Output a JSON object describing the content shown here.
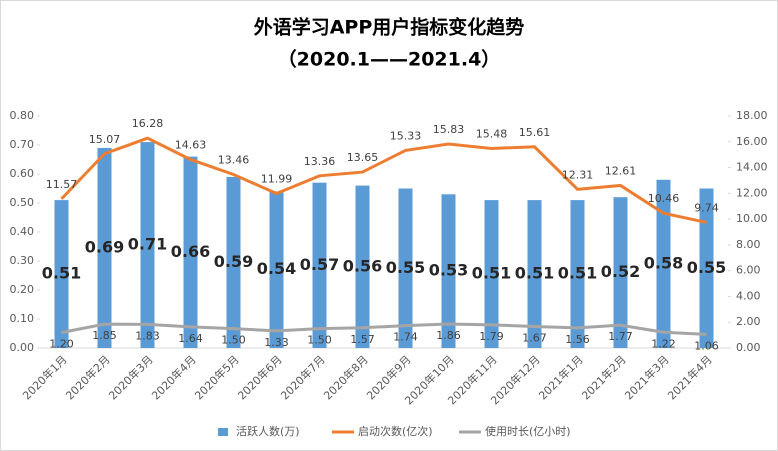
{
  "chart_data": {
    "type": "bar-line",
    "title": "外语学习APP用户指标变化趋势",
    "subtitle": "（2020.1——2021.4）",
    "categories": [
      "2020年1月",
      "2020年2月",
      "2020年3月",
      "2020年4月",
      "2020年5月",
      "2020年6月",
      "2020年7月",
      "2020年8月",
      "2020年9月",
      "2020年10月",
      "2020年11月",
      "2020年12月",
      "2021年1月",
      "2021年2月",
      "2021年3月",
      "2021年4月"
    ],
    "series": [
      {
        "name": "活跃人数(万)",
        "type": "bar",
        "color": "#5b9bd5",
        "values": [
          0.51,
          0.69,
          0.71,
          0.66,
          0.59,
          0.54,
          0.57,
          0.56,
          0.55,
          0.53,
          0.51,
          0.51,
          0.51,
          0.52,
          0.58,
          0.55
        ]
      },
      {
        "name": "启动次数(亿次)",
        "type": "line",
        "axis": "y2",
        "color": "#ed7d31",
        "values": [
          11.57,
          15.07,
          16.28,
          14.63,
          13.46,
          11.99,
          13.36,
          13.65,
          15.33,
          15.83,
          15.48,
          15.61,
          12.31,
          12.61,
          10.46,
          9.74
        ]
      },
      {
        "name": "使用时长(亿小时)",
        "type": "line",
        "axis": "y2",
        "color": "#a5a5a5",
        "values": [
          1.2,
          1.85,
          1.83,
          1.64,
          1.5,
          1.33,
          1.5,
          1.57,
          1.74,
          1.86,
          1.79,
          1.67,
          1.56,
          1.77,
          1.22,
          1.06
        ],
        "value_labels": [
          "1.20",
          "1.85",
          "1.83",
          "1.64",
          "1.50",
          "1.33",
          "1.50",
          "1.57",
          "1.74",
          "1.86",
          "1.79",
          "1.67",
          "1.56",
          "1.77",
          "1.22",
          "1.06"
        ]
      }
    ],
    "ylim": [
      0,
      0.8
    ],
    "yticks": [
      {
        "value": 0,
        "label": "0.00"
      },
      {
        "value": 0.1,
        "label": "0.10"
      },
      {
        "value": 0.2,
        "label": "0.20"
      },
      {
        "value": 0.3,
        "label": "0.30"
      },
      {
        "value": 0.4,
        "label": "0.40"
      },
      {
        "value": 0.5,
        "label": "0.50"
      },
      {
        "value": 0.6,
        "label": "0.60"
      },
      {
        "value": 0.7,
        "label": "0.70"
      },
      {
        "value": 0.8,
        "label": "0.80"
      }
    ],
    "y2lim": [
      0,
      18
    ],
    "y2ticks": [
      {
        "value": 0,
        "label": "0.00"
      },
      {
        "value": 2,
        "label": "2.00"
      },
      {
        "value": 4,
        "label": "4.00"
      },
      {
        "value": 6,
        "label": "6.00"
      },
      {
        "value": 8,
        "label": "8.00"
      },
      {
        "value": 10,
        "label": "10.00"
      },
      {
        "value": 12,
        "label": "12.00"
      },
      {
        "value": 14,
        "label": "14.00"
      },
      {
        "value": 16,
        "label": "16.00"
      },
      {
        "value": 18,
        "label": "18.00"
      }
    ],
    "legend": "bottom"
  }
}
